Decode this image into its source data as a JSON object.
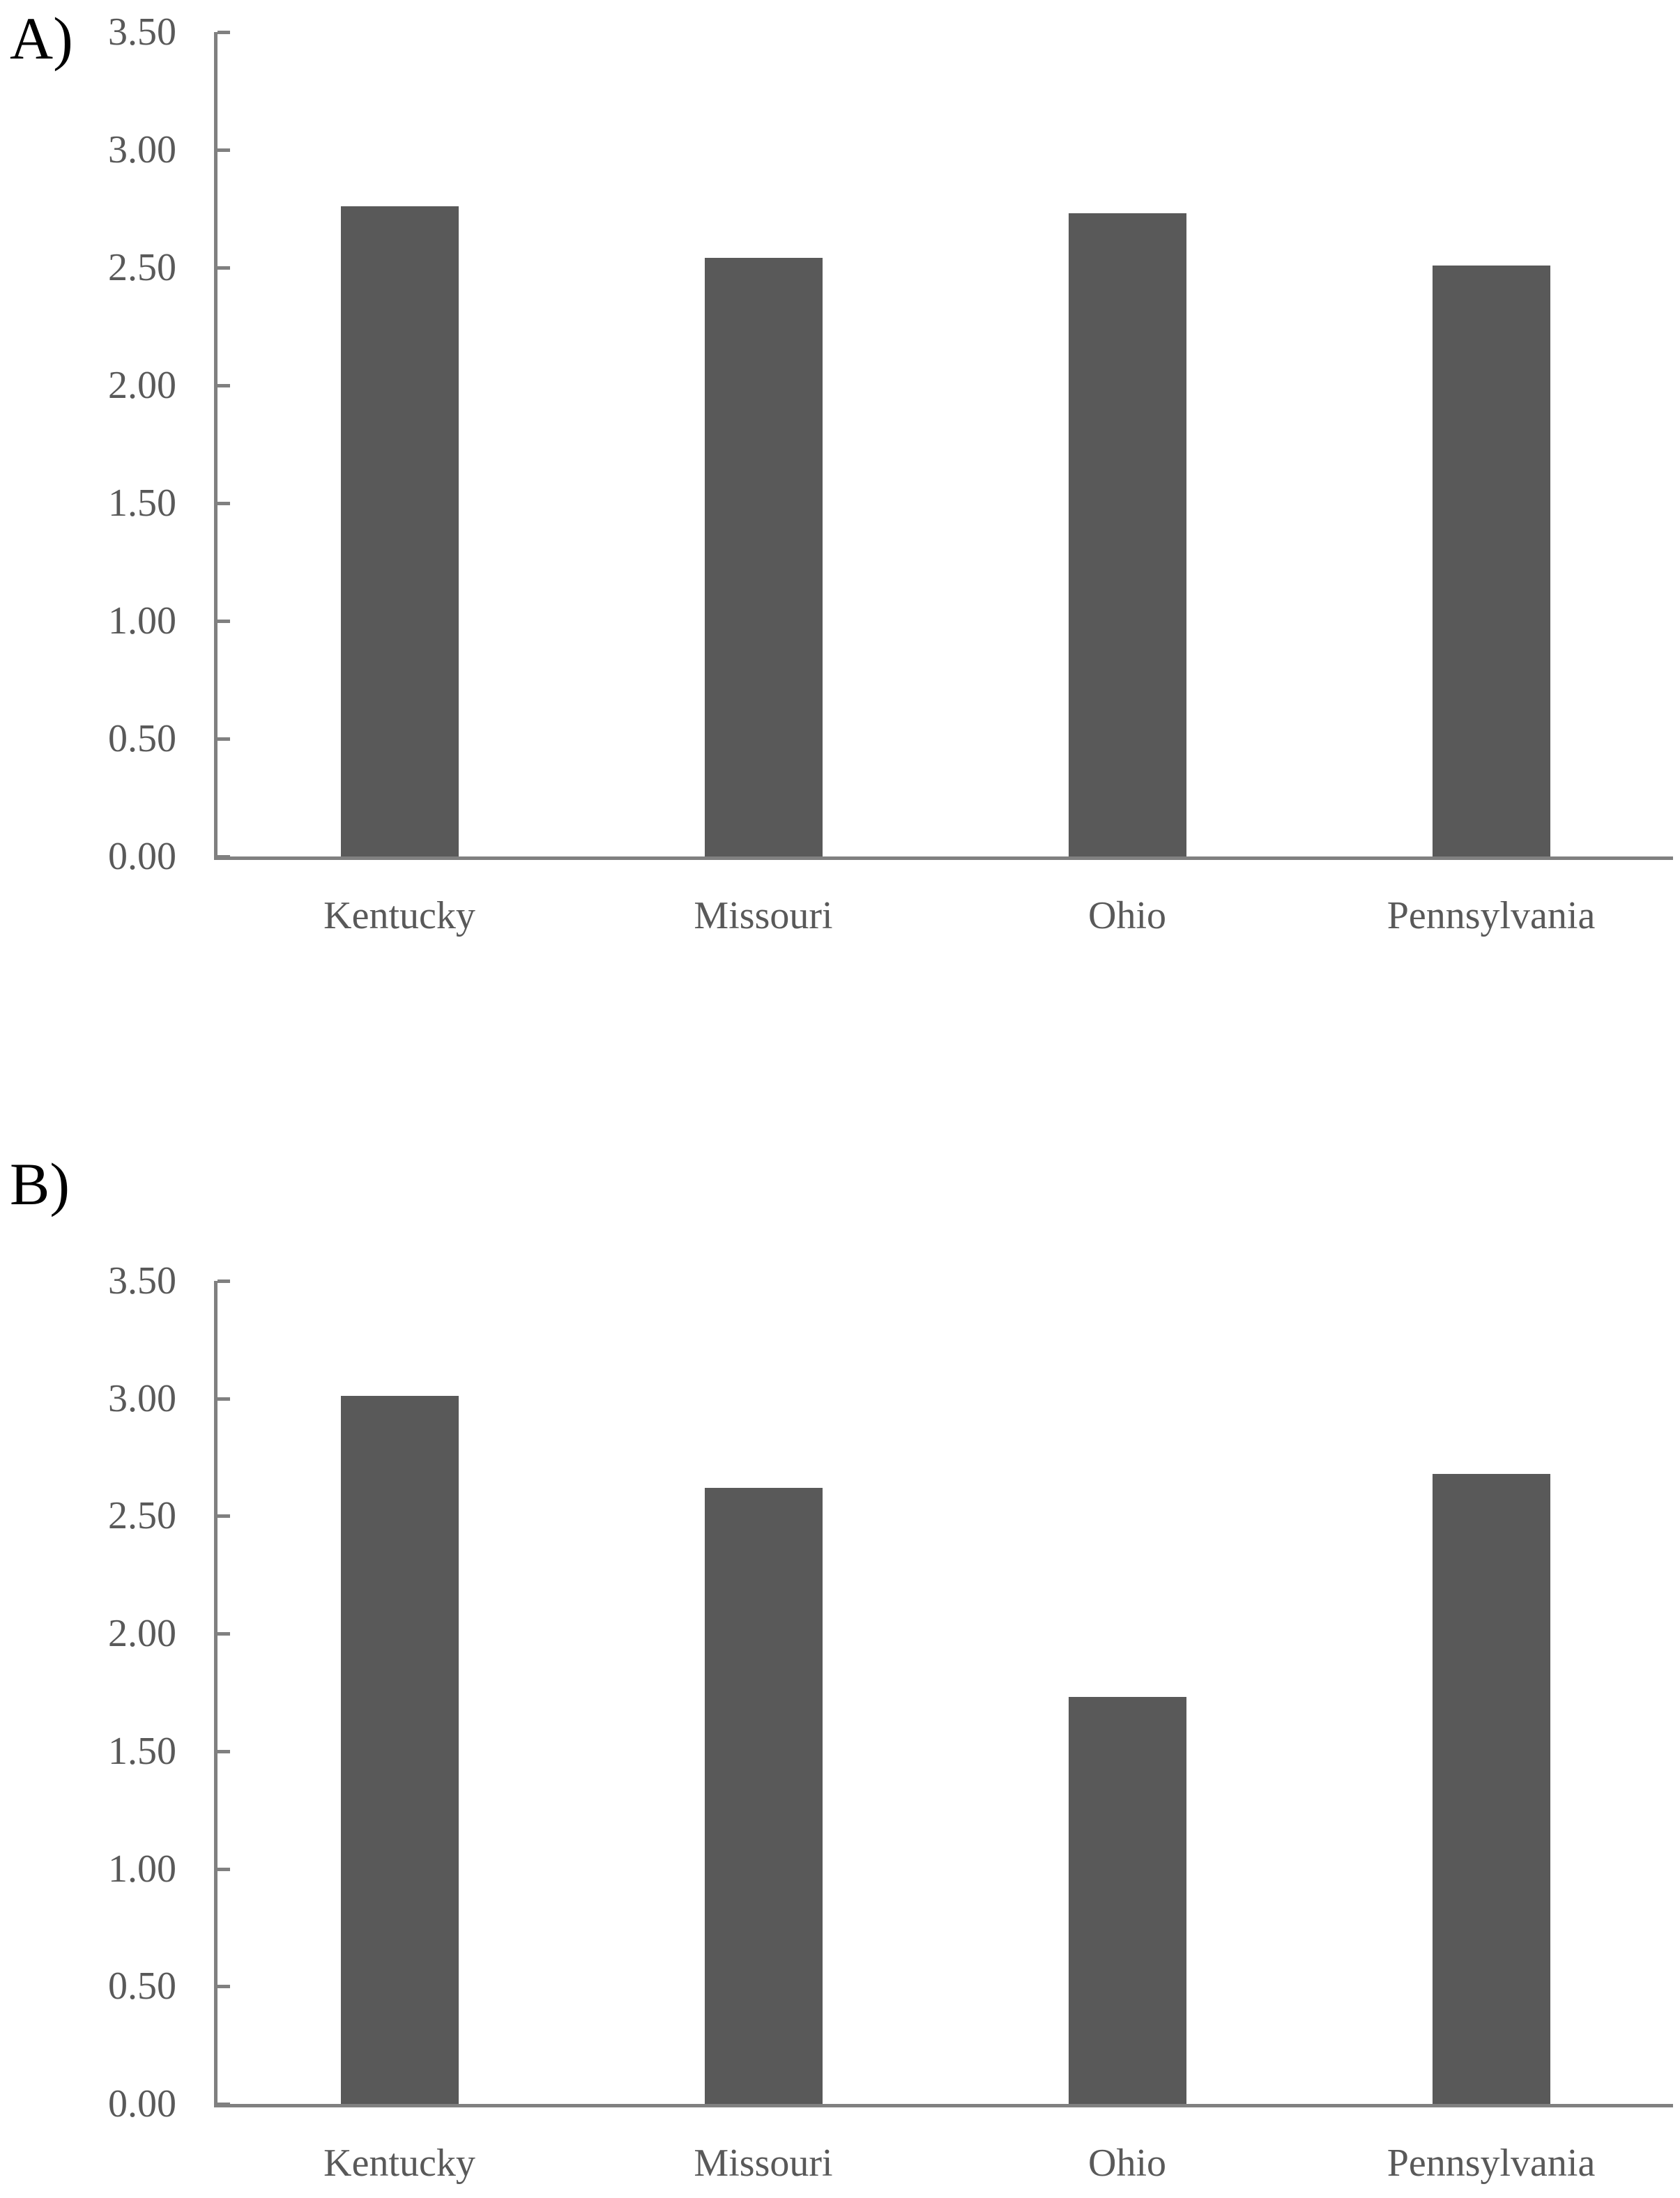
{
  "chart_data": [
    {
      "type": "bar",
      "panel_label": "A)",
      "categories": [
        "Kentucky",
        "Missouri",
        "Ohio",
        "Pennsylvania"
      ],
      "values": [
        2.76,
        2.54,
        2.73,
        2.51
      ],
      "title": "",
      "xlabel": "",
      "ylabel": "",
      "ylim": [
        0,
        3.5
      ],
      "yticks": [
        0,
        0.5,
        1.0,
        1.5,
        2.0,
        2.5,
        3.0,
        3.5
      ],
      "ytick_labels": [
        "0.00",
        "0.50",
        "1.00",
        "1.50",
        "2.00",
        "2.50",
        "3.00",
        "3.50"
      ],
      "grid": false,
      "legend_position": "none",
      "bar_color": "#595959",
      "axis_color": "#808080",
      "text_color": "#595959",
      "panel_label_color": "#000000"
    },
    {
      "type": "bar",
      "panel_label": "B)",
      "categories": [
        "Kentucky",
        "Missouri",
        "Ohio",
        "Pennsylvania"
      ],
      "values": [
        3.01,
        2.62,
        1.73,
        2.68
      ],
      "title": "",
      "xlabel": "",
      "ylabel": "",
      "ylim": [
        0,
        3.5
      ],
      "yticks": [
        0,
        0.5,
        1.0,
        1.5,
        2.0,
        2.5,
        3.0,
        3.5
      ],
      "ytick_labels": [
        "0.00",
        "0.50",
        "1.00",
        "1.50",
        "2.00",
        "2.50",
        "3.00",
        "3.50"
      ],
      "grid": false,
      "legend_position": "none",
      "bar_color": "#595959",
      "axis_color": "#808080",
      "text_color": "#595959",
      "panel_label_color": "#000000"
    }
  ]
}
